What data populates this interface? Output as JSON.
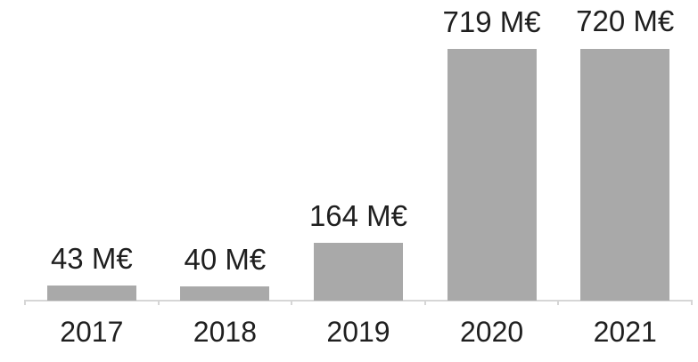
{
  "chart_data": {
    "type": "bar",
    "title": "",
    "xlabel": "",
    "ylabel": "",
    "unit": "M€",
    "categories": [
      "2017",
      "2018",
      "2019",
      "2020",
      "2021"
    ],
    "values": [
      43,
      40,
      164,
      719,
      720
    ],
    "value_labels": [
      "43 M€",
      "40 M€",
      "164 M€",
      "719 M€",
      "720 M€"
    ],
    "ylim": [
      0,
      720
    ],
    "grid": false,
    "legend": false,
    "colors": {
      "bar_fill": "#a9a9a9",
      "axis_line": "#d6d6d6",
      "text": "#1f1f1f",
      "background": "#ffffff"
    }
  }
}
